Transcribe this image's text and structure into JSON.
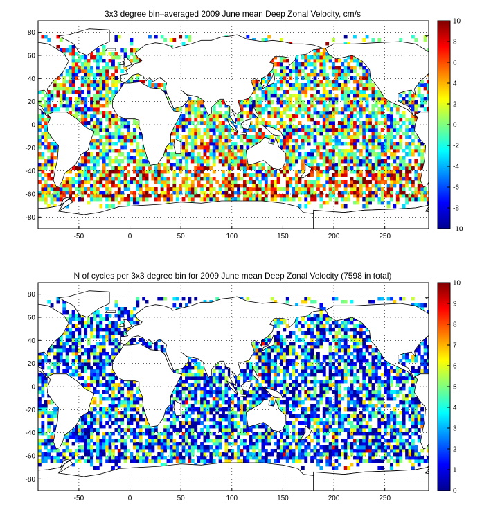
{
  "chart_data": [
    {
      "type": "heatmap",
      "title": "3x3 degree bin–averaged 2009 June mean Deep Zonal Velocity, cm/s",
      "xlim": [
        -90,
        293
      ],
      "ylim": [
        -90,
        90
      ],
      "x_ticks": [
        -50,
        0,
        50,
        100,
        150,
        200,
        250
      ],
      "y_ticks": [
        -80,
        -60,
        -40,
        -20,
        0,
        20,
        40,
        60,
        80
      ],
      "grid": true,
      "colorbar": {
        "min": -10,
        "max": 10,
        "ticks": [
          -10,
          -8,
          -6,
          -4,
          -2,
          0,
          2,
          4,
          6,
          8,
          10
        ],
        "colormap": "jet"
      },
      "bin_size_deg": 3,
      "seed": 11
    },
    {
      "type": "heatmap",
      "title": "N of cycles per 3x3 degree bin for 2009 June mean Deep Zonal Velocity (7598 in total)",
      "xlim": [
        -90,
        293
      ],
      "ylim": [
        -90,
        90
      ],
      "x_ticks": [
        -50,
        0,
        50,
        100,
        150,
        200,
        250
      ],
      "y_ticks": [
        -80,
        -60,
        -40,
        -20,
        0,
        20,
        40,
        60,
        80
      ],
      "grid": true,
      "colorbar": {
        "min": 0,
        "max": 10,
        "ticks": [
          0,
          1,
          2,
          3,
          4,
          5,
          6,
          7,
          8,
          9,
          10
        ],
        "colormap": "jet"
      },
      "bin_size_deg": 3,
      "seed": 29
    }
  ],
  "colors": {
    "axis": "#000000",
    "background": "#ffffff",
    "grid": "#000000"
  }
}
